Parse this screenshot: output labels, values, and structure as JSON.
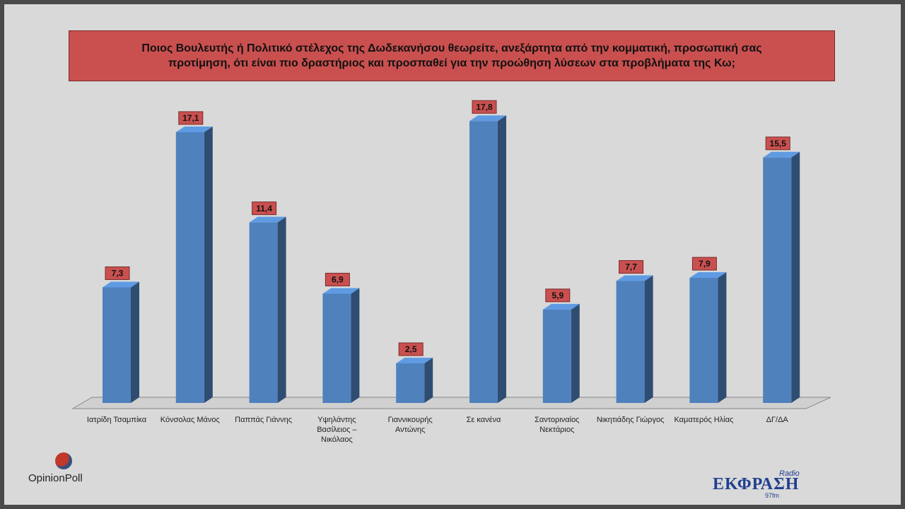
{
  "chart_data": {
    "type": "bar",
    "title": "Ποιος Βουλευτής ή Πολιτικό στέλεχος της Δωδεκανήσου θεωρείτε, ανεξάρτητα από την κομματική, προσωπική σας προτίμηση, ότι είναι πιο δραστήριος και προσπαθεί για την προώθηση λύσεων στα προβλήματα της Κω;",
    "categories": [
      "Ιατρίδη Τσαμπίκα",
      "Κόνσολας Μάνος",
      "Παππάς Γιάννης",
      "Υψηλάντης Βασίλειος – Νικόλαος",
      "Γιαννικουρής Αντώνης",
      "Σε κανένα",
      "Σαντοριναίος Νεκτάριος",
      "Νικητιάδης Γιώργος",
      "Καματερός Ηλίας",
      "ΔΓ/ΔΑ"
    ],
    "values": [
      7.3,
      17.1,
      11.4,
      6.9,
      2.5,
      17.8,
      5.9,
      7.7,
      7.9,
      15.5
    ],
    "value_labels": [
      "7,3",
      "17,1",
      "11,4",
      "6,9",
      "2,5",
      "17,8",
      "5,9",
      "7,7",
      "7,9",
      "15,5"
    ],
    "color": "#4f81bd"
  },
  "logos": {
    "left": "OpinionPoll",
    "right": "ΕΚΦΡΑΣΗ",
    "right_top": "Radio",
    "right_bottom": "97fm"
  }
}
